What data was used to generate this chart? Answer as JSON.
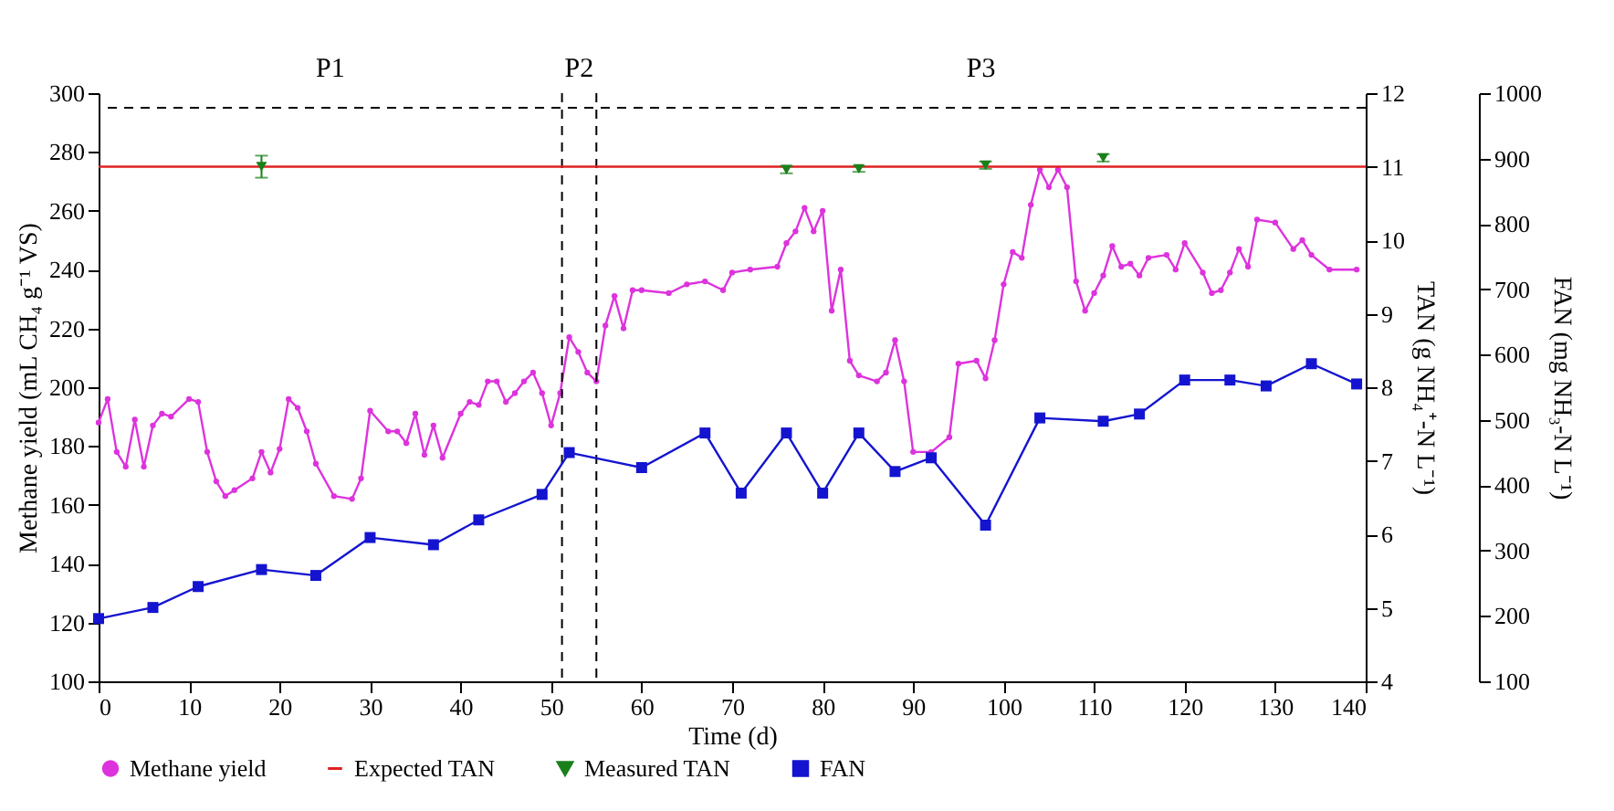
{
  "chart_data": {
    "type": "line",
    "xlabel": "Time (d)",
    "ylabel": "Methane yield (mL CH₄ g⁻¹ VS)",
    "y2label": "TAN (g NH₄⁺-N L⁻¹)",
    "y3label": "FAN (mg NH₃-N L⁻¹)",
    "xlim": [
      0,
      140
    ],
    "xticks": [
      0,
      10,
      20,
      30,
      40,
      50,
      60,
      70,
      80,
      90,
      100,
      110,
      120,
      130,
      140
    ],
    "ylim": [
      100,
      300
    ],
    "yticks": [
      100,
      120,
      140,
      160,
      180,
      200,
      220,
      240,
      260,
      280,
      300
    ],
    "y2lim": [
      4,
      12
    ],
    "y2ticks": [
      4,
      5,
      6,
      7,
      8,
      9,
      10,
      11,
      12
    ],
    "y3lim": [
      100,
      1000
    ],
    "y3ticks": [
      100,
      200,
      300,
      400,
      500,
      600,
      700,
      800,
      900,
      1000
    ],
    "legend": "bottom",
    "series": [
      {
        "name": "Methane yield",
        "type": "line",
        "color": "#dd33dd",
        "marker": "circle",
        "x": [
          0,
          1,
          2,
          3,
          4,
          5,
          6,
          7,
          8,
          10,
          11,
          12,
          13,
          14,
          15,
          17,
          18,
          19,
          20,
          21,
          22,
          23,
          24,
          26,
          28,
          29,
          30,
          32,
          33,
          34,
          35,
          36,
          37,
          38,
          40,
          41,
          42,
          43,
          44,
          45,
          46,
          47,
          48,
          49,
          50,
          51,
          52,
          53,
          54,
          55,
          56,
          57,
          58,
          59,
          60,
          63,
          65,
          67,
          69,
          70,
          72,
          75,
          76,
          77,
          78,
          79,
          80,
          81,
          82,
          83,
          84,
          86,
          87,
          88,
          89,
          90,
          92,
          94,
          95,
          97,
          98,
          99,
          100,
          101,
          102,
          103,
          104,
          105,
          106,
          107,
          108,
          109,
          110,
          111,
          112,
          113,
          114,
          115,
          116,
          118,
          119,
          120,
          122,
          123,
          124,
          125,
          126,
          127,
          128,
          130,
          132,
          133,
          134,
          136,
          139
        ],
        "values": [
          188,
          196,
          178,
          173,
          189,
          173,
          187,
          191,
          190,
          196,
          195,
          178,
          168,
          163,
          165,
          169,
          178,
          171,
          179,
          196,
          193,
          185,
          174,
          163,
          162,
          169,
          192,
          185,
          185,
          181,
          191,
          177,
          187,
          176,
          191,
          195,
          194,
          202,
          202,
          195,
          198,
          202,
          205,
          198,
          187,
          198,
          217,
          212,
          205,
          202,
          221,
          231,
          220,
          233,
          233,
          232,
          235,
          236,
          233,
          239,
          240,
          241,
          249,
          253,
          261,
          253,
          260,
          226,
          240,
          209,
          204,
          202,
          205,
          216,
          202,
          178,
          178,
          183,
          208,
          209,
          203,
          216,
          235,
          246,
          244,
          262,
          274,
          268,
          274,
          268,
          236,
          226,
          232,
          238,
          248,
          241,
          242,
          238,
          244,
          245,
          240,
          249,
          239,
          232,
          233,
          239,
          247,
          241,
          257,
          256,
          247,
          250,
          245,
          240,
          240
        ]
      },
      {
        "name": "Expected TAN",
        "type": "line",
        "color": "#e02020",
        "marker": "none",
        "axis": "y2",
        "x": [
          0,
          140
        ],
        "values": [
          11,
          11
        ]
      },
      {
        "name": "Measured TAN",
        "type": "scatter",
        "color": "#1a801a",
        "marker": "triangle",
        "axis": "y2",
        "x": [
          18,
          76,
          84,
          98,
          111
        ],
        "values": [
          11.0,
          10.96,
          10.97,
          11.02,
          11.12
        ],
        "errors": [
          0.15,
          0.05,
          0.04,
          0.05,
          0.05
        ]
      },
      {
        "name": "FAN",
        "type": "line",
        "color": "#1414d0",
        "marker": "square",
        "axis": "y3",
        "x": [
          0,
          6,
          11,
          18,
          24,
          30,
          37,
          42,
          49,
          52,
          60,
          67,
          71,
          76,
          80,
          84,
          88,
          92,
          98,
          104,
          111,
          115,
          120,
          125,
          129,
          134,
          139
        ],
        "values": [
          196,
          213,
          245,
          271,
          262,
          320,
          309,
          347,
          386,
          450,
          427,
          480,
          388,
          480,
          388,
          480,
          421,
          442,
          339,
          503,
          498,
          509,
          561,
          561,
          552,
          586,
          555
        ]
      }
    ],
    "ref_lines": [
      {
        "axis": "x",
        "value": 51.2,
        "line_style": "dashed",
        "color": "#000000"
      },
      {
        "axis": "x",
        "value": 55,
        "line_style": "dashed",
        "color": "#000000"
      },
      {
        "axis": "y2",
        "value": 11.8,
        "line_style": "dashed",
        "color": "#000000"
      }
    ],
    "annotations": [
      "P1",
      "P2",
      "P3"
    ]
  }
}
